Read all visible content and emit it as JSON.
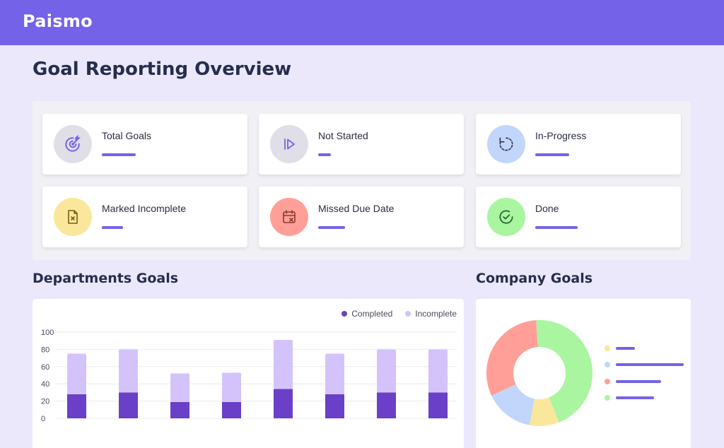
{
  "app": {
    "brand": "Paismo"
  },
  "page": {
    "title": "Goal Reporting Overview"
  },
  "stats": [
    {
      "label": "Total Goals",
      "icon": "target-icon",
      "circle_color": "#e0dfe8",
      "icon_color": "#7462e8",
      "progress": 0.24
    },
    {
      "label": "Not Started",
      "icon": "play-icon",
      "circle_color": "#e0dfe8",
      "icon_color": "#7462e8",
      "progress": 0.09
    },
    {
      "label": "In-Progress",
      "icon": "refresh-icon",
      "circle_color": "#c2d6fb",
      "icon_color": "#3d3d55",
      "progress": 0.24
    },
    {
      "label": "Marked Incomplete",
      "icon": "file-x-icon",
      "circle_color": "#fbe79c",
      "icon_color": "#7a5a14",
      "progress": 0.15
    },
    {
      "label": "Missed Due Date",
      "icon": "calendar-x-icon",
      "circle_color": "#ff9f98",
      "icon_color": "#8a3b2d",
      "progress": 0.19
    },
    {
      "label": "Done",
      "icon": "check-circle-icon",
      "circle_color": "#a9f5a0",
      "icon_color": "#2f6b36",
      "progress": 0.3
    }
  ],
  "departments": {
    "title": "Departments Goals"
  },
  "company": {
    "title": "Company Goals"
  },
  "chart_data": [
    {
      "type": "bar",
      "stacked": true,
      "categories": [
        "",
        "",
        "",
        "",
        "",
        "",
        "",
        ""
      ],
      "series": [
        {
          "name": "Completed",
          "color": "#6a40c8",
          "values": [
            28,
            30,
            19,
            19,
            34,
            28,
            30,
            30
          ]
        },
        {
          "name": "Incomplete",
          "color": "#d4c3fb",
          "values": [
            47,
            50,
            33,
            34,
            57,
            47,
            50,
            50
          ]
        }
      ],
      "ylim": [
        0,
        100
      ],
      "yticks": [
        0,
        20,
        40,
        60,
        80,
        100
      ],
      "grid": true,
      "legend": "top-right"
    },
    {
      "type": "pie",
      "donut": true,
      "slices": [
        {
          "value": 9,
          "color": "#fbe79c"
        },
        {
          "value": 15,
          "color": "#c2d6fb"
        },
        {
          "value": 31,
          "color": "#ff9f98"
        },
        {
          "value": 45,
          "color": "#a9f5a0"
        }
      ],
      "legend": "right"
    }
  ]
}
